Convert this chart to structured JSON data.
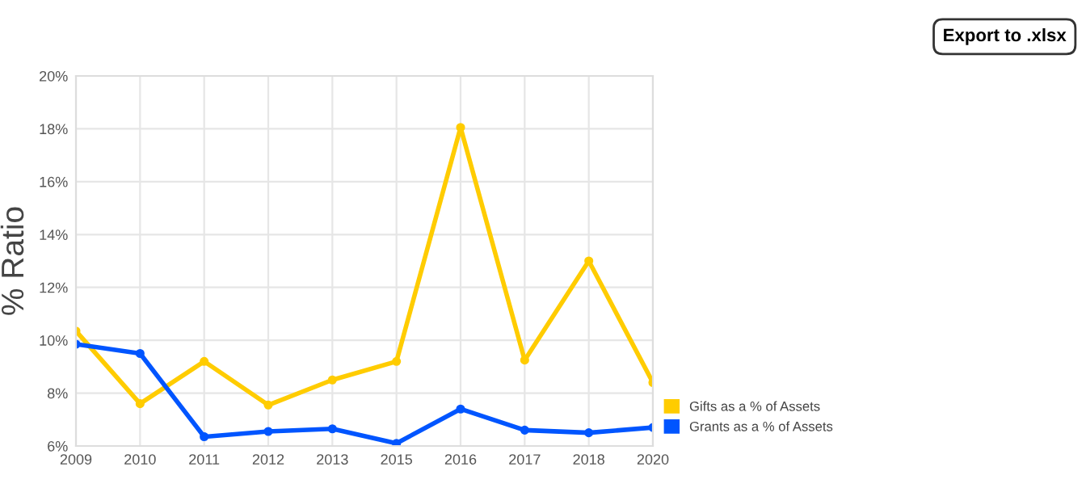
{
  "chart_data": {
    "type": "line",
    "ylabel": "% Ratio",
    "categories": [
      "2009",
      "2010",
      "2011",
      "2012",
      "2013",
      "2015",
      "2016",
      "2017",
      "2018",
      "2020"
    ],
    "series": [
      {
        "name": "Gifts as a % of Assets",
        "color": "#ffcc00",
        "values": [
          10.35,
          7.6,
          9.2,
          7.55,
          8.5,
          9.2,
          18.05,
          9.25,
          13.0,
          8.4
        ]
      },
      {
        "name": "Grants as a % of Assets",
        "color": "#0055ff",
        "values": [
          9.85,
          9.5,
          6.35,
          6.55,
          6.65,
          6.1,
          7.4,
          6.6,
          6.5,
          6.7
        ]
      }
    ],
    "ylim": [
      6,
      20
    ],
    "yticks": [
      {
        "value": 6,
        "label": "6%"
      },
      {
        "value": 8,
        "label": "8%"
      },
      {
        "value": 10,
        "label": "10%"
      },
      {
        "value": 12,
        "label": "12%"
      },
      {
        "value": 14,
        "label": "14%"
      },
      {
        "value": 16,
        "label": "16%"
      },
      {
        "value": 18,
        "label": "18%"
      },
      {
        "value": 20,
        "label": "20%"
      }
    ],
    "grid": true,
    "legend": "bottom right",
    "marker": "circle",
    "line_style": "solid",
    "annotations": [
      "Export to .xlsx"
    ]
  }
}
